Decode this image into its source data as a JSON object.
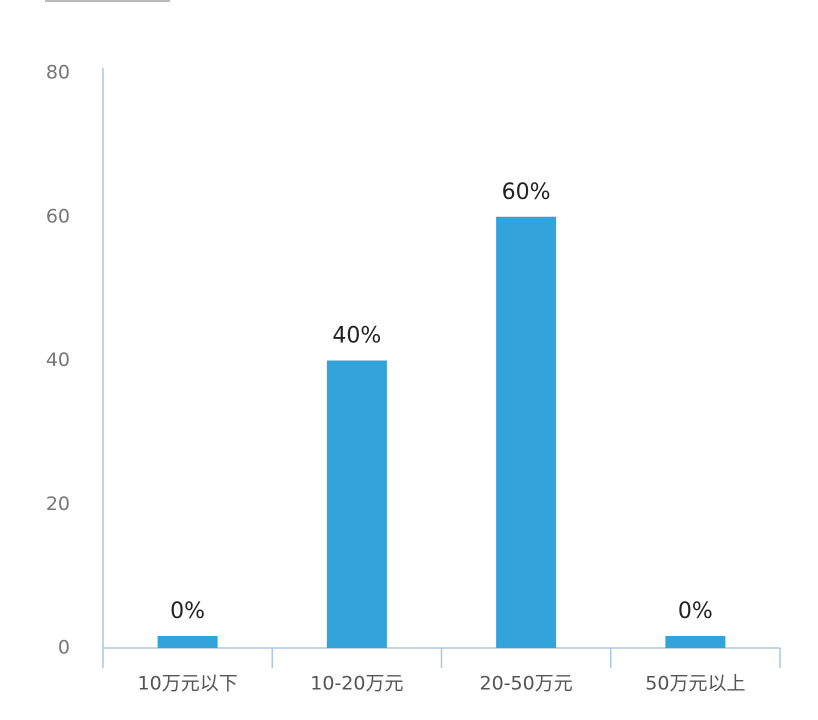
{
  "chart_data": {
    "type": "bar",
    "categories": [
      "10万元以下",
      "10-20万元",
      "20-50万元",
      "50万元以上"
    ],
    "values": [
      0,
      40,
      60,
      0
    ],
    "value_labels": [
      "0%",
      "40%",
      "60%",
      "0%"
    ],
    "color": "#33a3dc",
    "ylim": [
      0,
      80
    ],
    "yticks": [
      0,
      20,
      40,
      60,
      80
    ]
  }
}
